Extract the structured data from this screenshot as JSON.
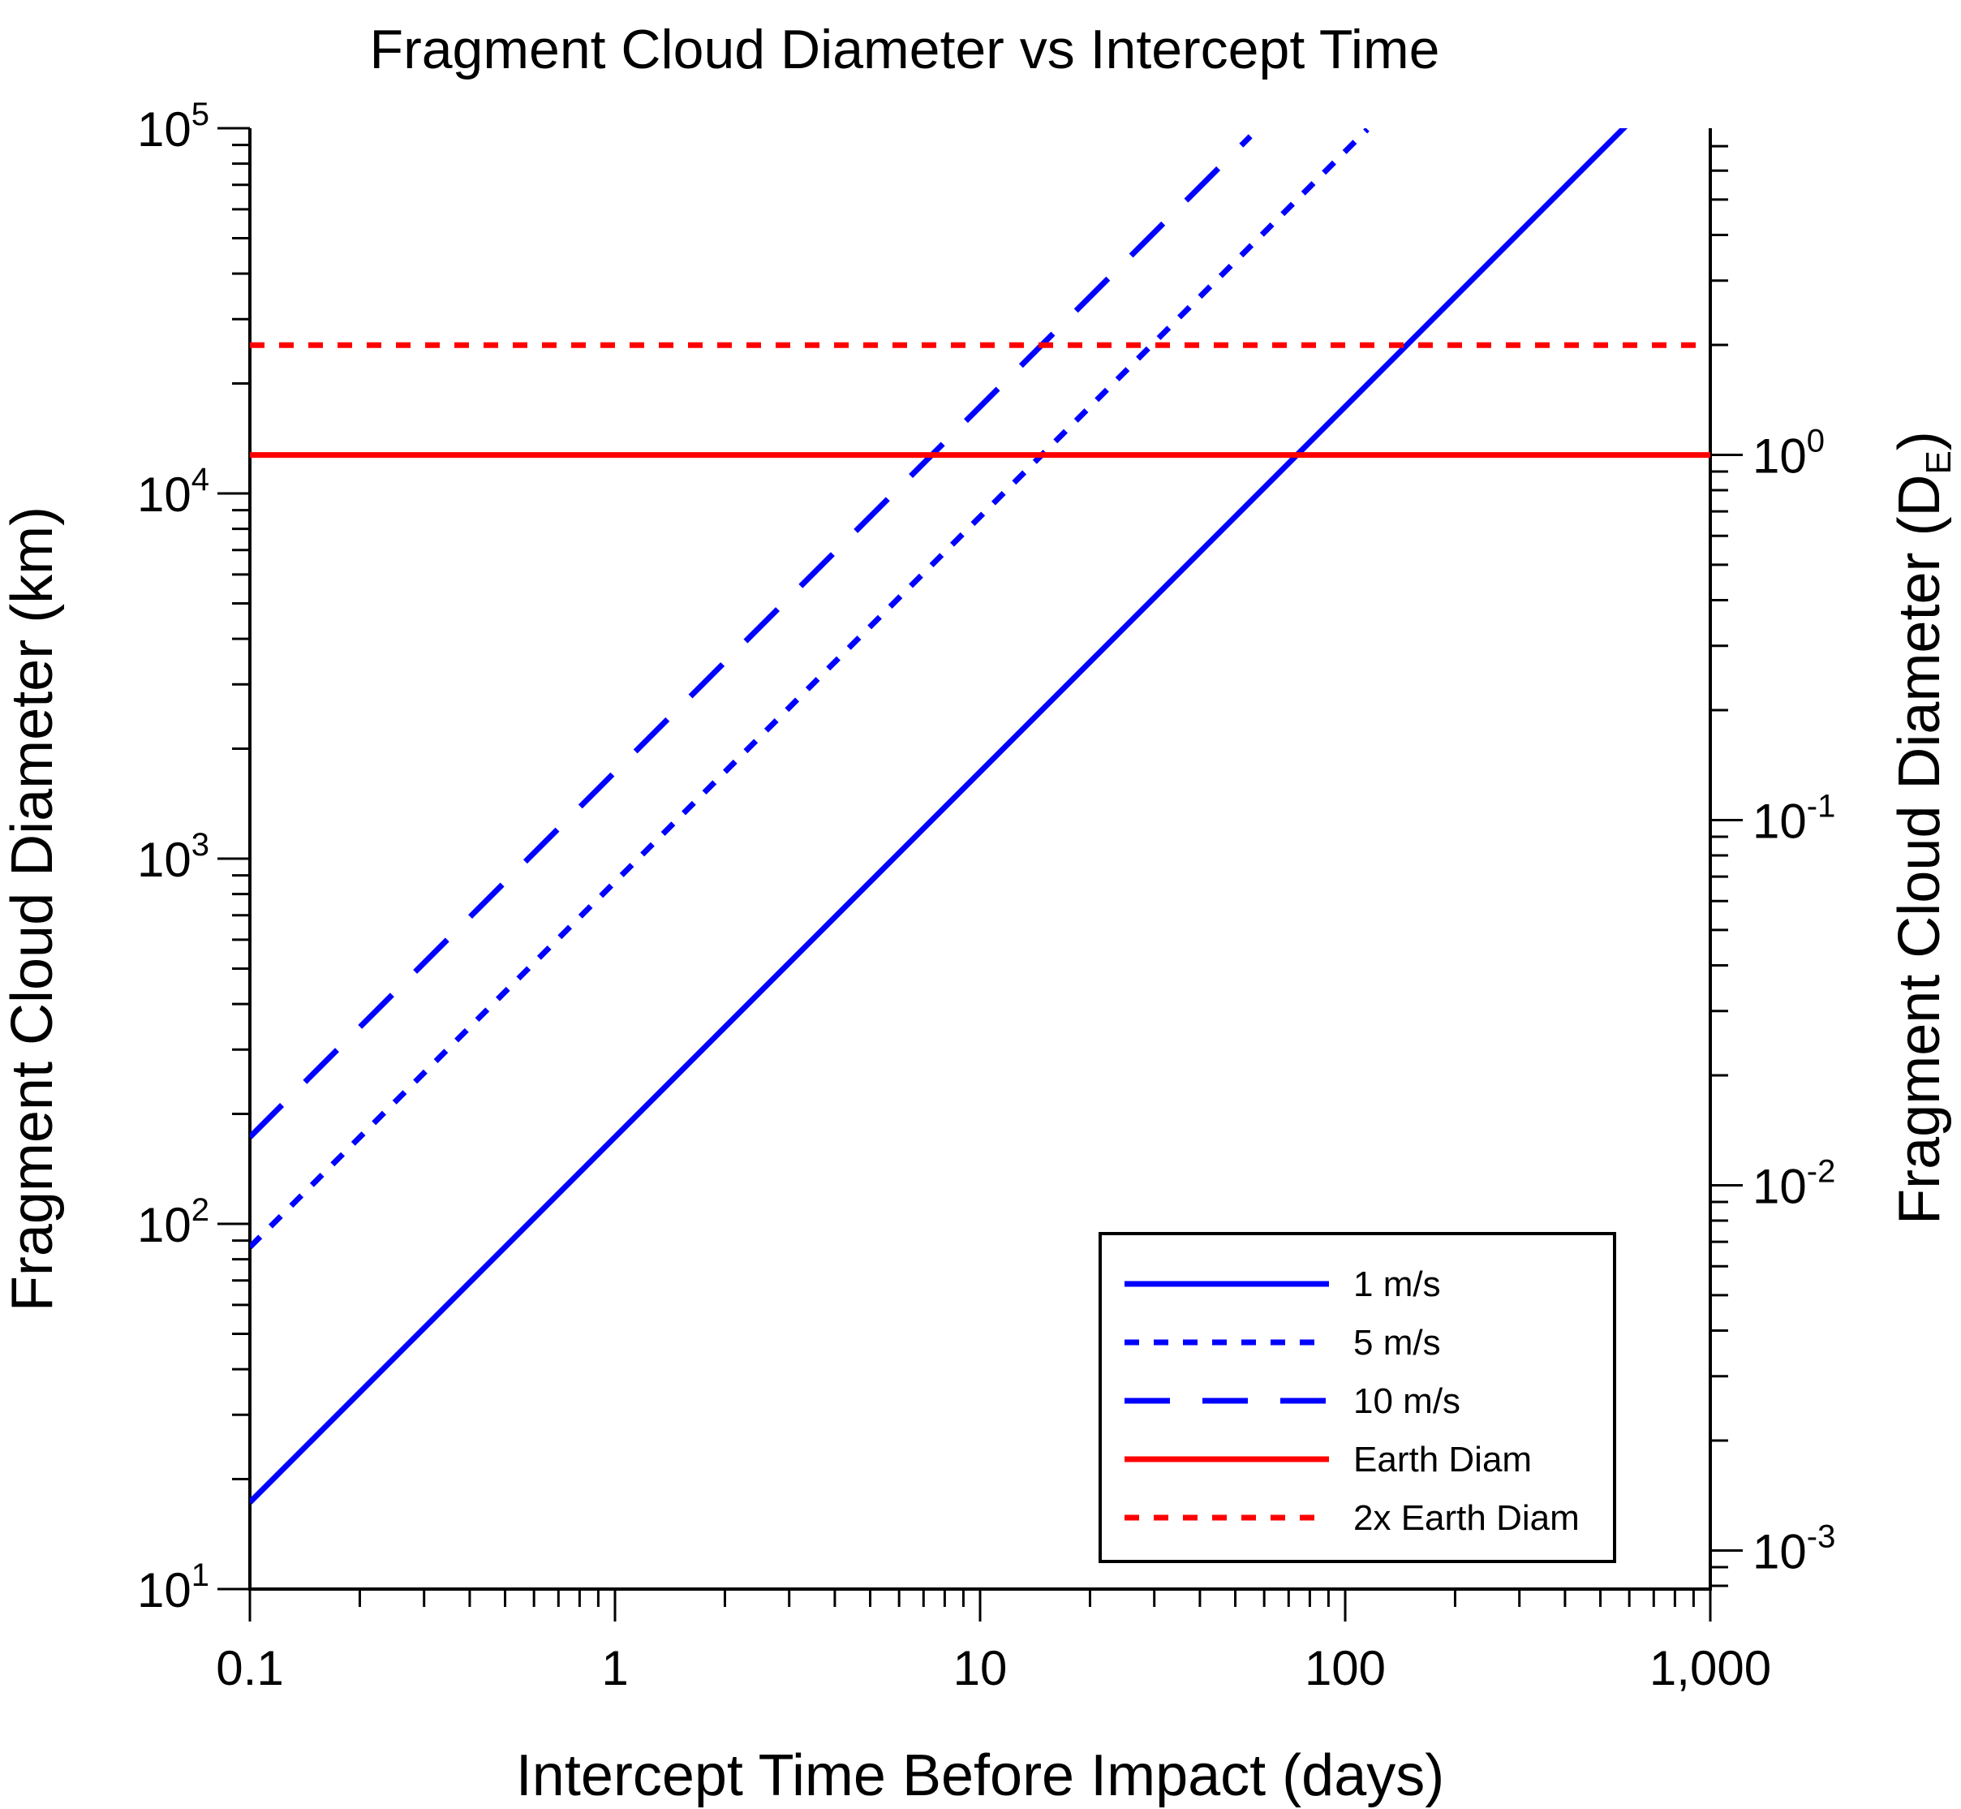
{
  "chart_data": {
    "type": "line",
    "title": "Fragment Cloud Diameter vs Intercept Time",
    "xlabel": "Intercept Time Before Impact (days)",
    "ylabel": "Fragment Cloud Diameter (km)",
    "y2label": "Fragment Cloud Diameter (D",
    "y2label_sub": "E",
    "y2label_close": ")",
    "xscale": "log",
    "yscale": "log",
    "xlim": [
      0.1,
      1000
    ],
    "ylim": [
      10,
      100000
    ],
    "y2lim": [
      0.000784,
      7.84
    ],
    "grid": false,
    "legend_position": "bottom-right",
    "x_ticks": [
      {
        "value": 0.1,
        "label": "0.1"
      },
      {
        "value": 1,
        "label": "1"
      },
      {
        "value": 10,
        "label": "10"
      },
      {
        "value": 100,
        "label": "100"
      },
      {
        "value": 1000,
        "label": "1,000"
      }
    ],
    "y_ticks": [
      {
        "value": 10,
        "base": "10",
        "exp": "1"
      },
      {
        "value": 100,
        "base": "10",
        "exp": "2"
      },
      {
        "value": 1000,
        "base": "10",
        "exp": "3"
      },
      {
        "value": 10000,
        "base": "10",
        "exp": "4"
      },
      {
        "value": 100000,
        "base": "10",
        "exp": "5"
      }
    ],
    "y2_ticks": [
      {
        "value": 0.001,
        "base": "10",
        "exp": "-3"
      },
      {
        "value": 0.01,
        "base": "10",
        "exp": "-2"
      },
      {
        "value": 0.1,
        "base": "10",
        "exp": "-1"
      },
      {
        "value": 1,
        "base": "10",
        "exp": "0"
      }
    ],
    "series": [
      {
        "name": "1 m/s",
        "color": "#0000ff",
        "style": "solid",
        "x": [
          0.1,
          600
        ],
        "y": [
          17.28,
          103680
        ]
      },
      {
        "name": "5 m/s",
        "color": "#0000ff",
        "style": "dotted",
        "x": [
          0.1,
          115
        ],
        "y": [
          86.4,
          99360
        ]
      },
      {
        "name": "10 m/s",
        "color": "#0000ff",
        "style": "dashed",
        "x": [
          0.1,
          55
        ],
        "y": [
          172.8,
          95040
        ]
      },
      {
        "name": "Earth Diam",
        "color": "#ff0000",
        "style": "solid",
        "x": [
          0.1,
          1000
        ],
        "y": [
          12742,
          12742
        ]
      },
      {
        "name": "2x Earth Diam",
        "color": "#ff0000",
        "style": "dotted",
        "x": [
          0.1,
          1000
        ],
        "y": [
          25484,
          25484
        ]
      }
    ]
  }
}
